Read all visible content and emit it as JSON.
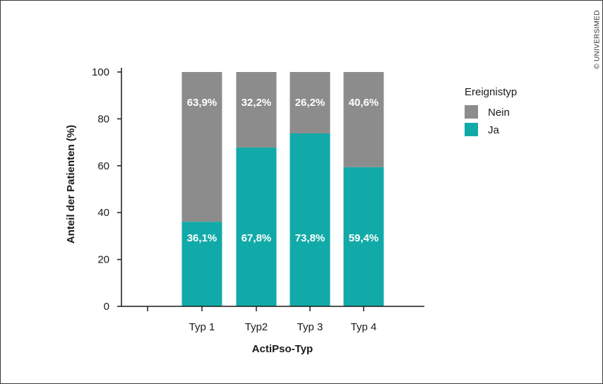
{
  "chart_data": {
    "type": "bar",
    "stacked": true,
    "categories": [
      "Typ 1",
      "Typ2",
      "Typ 3",
      "Typ 4"
    ],
    "series": [
      {
        "name": "Ja",
        "color": "#12aaa8",
        "values": [
          36.1,
          67.8,
          73.8,
          59.4
        ],
        "labels": [
          "36,1%",
          "67,8%",
          "73,8%",
          "59,4%"
        ]
      },
      {
        "name": "Nein",
        "color": "#8c8c8c",
        "values": [
          63.9,
          32.2,
          26.2,
          40.6
        ],
        "labels": [
          "63,9%",
          "32,2%",
          "26,2%",
          "40,6%"
        ]
      }
    ],
    "xlabel": "ActiPso-Typ",
    "ylabel": "Anteil der Patienten (%)",
    "ylim": [
      0,
      100
    ],
    "yticks": [
      0,
      20,
      40,
      60,
      80,
      100
    ],
    "yticklabels": [
      "0",
      "20",
      "40",
      "60",
      "80",
      "100"
    ],
    "legend": {
      "title": "Ereignistyp",
      "placement": "right",
      "entries": [
        "Nein",
        "Ja"
      ]
    },
    "grid": false
  },
  "credit": "© UNIVERSIMED"
}
